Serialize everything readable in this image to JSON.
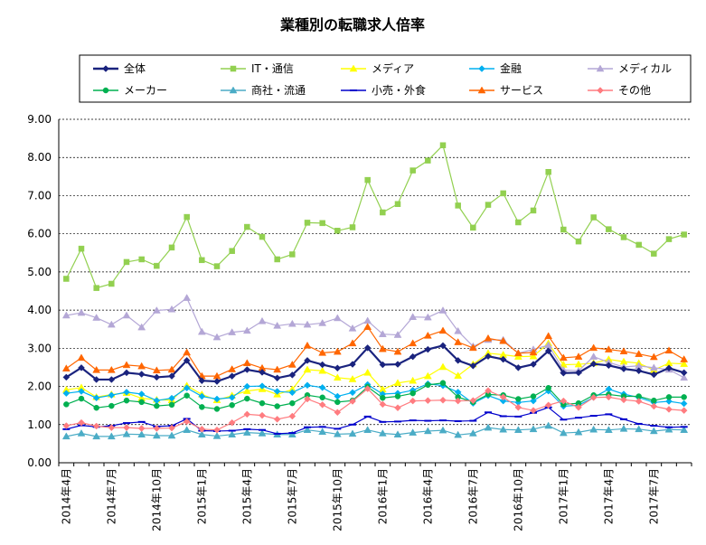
{
  "chart_data": {
    "type": "line",
    "title": "業種別の転職求人倍率",
    "ylim": [
      0,
      9
    ],
    "y_ticks": [
      "0.00",
      "1.00",
      "2.00",
      "3.00",
      "4.00",
      "5.00",
      "6.00",
      "7.00",
      "8.00",
      "9.00"
    ],
    "grid": "horizontal dashed",
    "legend_position": "top",
    "x": [
      "2014年4月",
      "2014年5月",
      "2014年6月",
      "2014年7月",
      "2014年8月",
      "2014年9月",
      "2014年10月",
      "2014年11月",
      "2014年12月",
      "2015年1月",
      "2015年2月",
      "2015年3月",
      "2015年4月",
      "2015年5月",
      "2015年6月",
      "2015年7月",
      "2015年8月",
      "2015年9月",
      "2015年10月",
      "2015年11月",
      "2015年12月",
      "2016年1月",
      "2016年2月",
      "2016年3月",
      "2016年4月",
      "2016年5月",
      "2016年6月",
      "2016年7月",
      "2016年8月",
      "2016年9月",
      "2016年10月",
      "2016年11月",
      "2016年12月",
      "2017年1月",
      "2017年2月",
      "2017年3月",
      "2017年4月",
      "2017年5月",
      "2017年6月",
      "2017年7月",
      "2017年8月",
      "2017年9月"
    ],
    "x_tick_labels": [
      {
        "index": 0,
        "label": "2014年4月"
      },
      {
        "index": 3,
        "label": "2014年7月"
      },
      {
        "index": 6,
        "label": "2014年10月"
      },
      {
        "index": 9,
        "label": "2015年1月"
      },
      {
        "index": 12,
        "label": "2015年4月"
      },
      {
        "index": 15,
        "label": "2015年7月"
      },
      {
        "index": 18,
        "label": "2015年10月"
      },
      {
        "index": 21,
        "label": "2016年1月"
      },
      {
        "index": 24,
        "label": "2016年4月"
      },
      {
        "index": 27,
        "label": "2016年7月"
      },
      {
        "index": 30,
        "label": "2016年10月"
      },
      {
        "index": 33,
        "label": "2017年1月"
      },
      {
        "index": 36,
        "label": "2017年4月"
      },
      {
        "index": 39,
        "label": "2017年7月"
      }
    ],
    "series": [
      {
        "name": "全体",
        "color": "#1a237e",
        "marker": "diamond",
        "width": 2.2,
        "values": [
          2.24,
          2.49,
          2.18,
          2.18,
          2.36,
          2.32,
          2.24,
          2.27,
          2.68,
          2.15,
          2.13,
          2.27,
          2.44,
          2.37,
          2.22,
          2.3,
          2.68,
          2.57,
          2.48,
          2.58,
          3.01,
          2.57,
          2.58,
          2.78,
          2.97,
          3.07,
          2.68,
          2.54,
          2.79,
          2.71,
          2.49,
          2.58,
          2.93,
          2.35,
          2.36,
          2.59,
          2.55,
          2.46,
          2.41,
          2.31,
          2.48,
          2.36
        ]
      },
      {
        "name": "IT・通信",
        "color": "#92d050",
        "marker": "square",
        "width": 1.2,
        "values": [
          4.82,
          5.61,
          4.58,
          4.69,
          5.26,
          5.33,
          5.16,
          5.64,
          6.44,
          5.31,
          5.15,
          5.55,
          6.18,
          5.92,
          5.33,
          5.46,
          6.29,
          6.28,
          6.08,
          6.17,
          7.41,
          6.56,
          6.78,
          7.66,
          7.92,
          8.32,
          6.74,
          6.16,
          6.76,
          7.06,
          6.3,
          6.61,
          7.62,
          6.11,
          5.8,
          6.43,
          6.12,
          5.91,
          5.71,
          5.48,
          5.86,
          5.98
        ]
      },
      {
        "name": "メディア",
        "color": "#ffff00",
        "marker": "triangle",
        "width": 1.2,
        "values": [
          1.91,
          1.97,
          1.72,
          1.79,
          1.83,
          1.69,
          1.65,
          1.64,
          2.02,
          1.79,
          1.64,
          1.76,
          1.88,
          1.93,
          1.79,
          1.92,
          2.44,
          2.41,
          2.23,
          2.19,
          2.36,
          1.92,
          2.09,
          2.15,
          2.27,
          2.51,
          2.28,
          2.58,
          2.87,
          2.83,
          2.78,
          2.79,
          3.13,
          2.57,
          2.58,
          2.61,
          2.71,
          2.65,
          2.61,
          2.43,
          2.61,
          2.59
        ]
      },
      {
        "name": "金融",
        "color": "#00b0f0",
        "marker": "diamond",
        "width": 1.2,
        "values": [
          1.82,
          1.87,
          1.7,
          1.77,
          1.85,
          1.8,
          1.63,
          1.69,
          1.96,
          1.74,
          1.67,
          1.71,
          2.0,
          2.01,
          1.87,
          1.84,
          2.03,
          1.97,
          1.74,
          1.84,
          2.05,
          1.8,
          1.82,
          1.9,
          2.07,
          2.02,
          1.85,
          1.56,
          1.76,
          1.62,
          1.58,
          1.62,
          1.88,
          1.48,
          1.51,
          1.71,
          1.93,
          1.8,
          1.71,
          1.58,
          1.61,
          1.55
        ]
      },
      {
        "name": "メディカル",
        "color": "#b4a7d6",
        "marker": "triangle",
        "width": 1.2,
        "values": [
          3.86,
          3.93,
          3.8,
          3.62,
          3.86,
          3.55,
          3.99,
          4.02,
          4.32,
          3.43,
          3.29,
          3.42,
          3.46,
          3.71,
          3.59,
          3.64,
          3.62,
          3.66,
          3.79,
          3.52,
          3.72,
          3.37,
          3.35,
          3.82,
          3.81,
          3.99,
          3.45,
          3.05,
          3.22,
          3.22,
          2.87,
          2.97,
          3.08,
          2.43,
          2.41,
          2.78,
          2.63,
          2.51,
          2.54,
          2.49,
          2.44,
          2.23
        ]
      },
      {
        "name": "メーカー",
        "color": "#00b050",
        "marker": "circle",
        "width": 1.2,
        "values": [
          1.53,
          1.68,
          1.44,
          1.49,
          1.63,
          1.59,
          1.49,
          1.52,
          1.76,
          1.46,
          1.41,
          1.51,
          1.68,
          1.56,
          1.48,
          1.56,
          1.77,
          1.71,
          1.59,
          1.63,
          1.99,
          1.7,
          1.74,
          1.82,
          2.04,
          2.09,
          1.72,
          1.59,
          1.79,
          1.77,
          1.67,
          1.74,
          1.96,
          1.53,
          1.56,
          1.77,
          1.79,
          1.74,
          1.74,
          1.63,
          1.72,
          1.72
        ]
      },
      {
        "name": "商社・流通",
        "color": "#4bacc6",
        "marker": "triangle",
        "width": 1.2,
        "values": [
          0.69,
          0.77,
          0.69,
          0.69,
          0.75,
          0.74,
          0.71,
          0.71,
          0.86,
          0.74,
          0.7,
          0.74,
          0.79,
          0.77,
          0.74,
          0.74,
          0.86,
          0.81,
          0.75,
          0.76,
          0.86,
          0.77,
          0.74,
          0.79,
          0.83,
          0.85,
          0.73,
          0.77,
          0.92,
          0.87,
          0.86,
          0.88,
          0.97,
          0.78,
          0.8,
          0.87,
          0.86,
          0.89,
          0.88,
          0.83,
          0.87,
          0.86
        ]
      },
      {
        "name": "小売・外食",
        "color": "#0000cc",
        "marker": "dash",
        "width": 1.2,
        "values": [
          0.88,
          0.98,
          0.94,
          0.97,
          1.04,
          1.07,
          0.95,
          0.97,
          1.15,
          0.84,
          0.83,
          0.84,
          0.88,
          0.86,
          0.76,
          0.78,
          0.93,
          0.94,
          0.89,
          1.0,
          1.21,
          1.07,
          1.08,
          1.11,
          1.1,
          1.11,
          1.09,
          1.1,
          1.32,
          1.22,
          1.21,
          1.31,
          1.45,
          1.13,
          1.18,
          1.23,
          1.27,
          1.14,
          1.02,
          0.97,
          0.93,
          0.94
        ]
      },
      {
        "name": "サービス",
        "color": "#ff6600",
        "marker": "triangle",
        "width": 1.2,
        "values": [
          2.47,
          2.75,
          2.43,
          2.43,
          2.56,
          2.53,
          2.42,
          2.44,
          2.89,
          2.27,
          2.27,
          2.45,
          2.61,
          2.48,
          2.44,
          2.57,
          3.07,
          2.88,
          2.91,
          3.13,
          3.56,
          2.98,
          2.91,
          3.13,
          3.33,
          3.46,
          3.16,
          3.01,
          3.26,
          3.19,
          2.87,
          2.89,
          3.32,
          2.75,
          2.78,
          3.01,
          2.97,
          2.92,
          2.85,
          2.77,
          2.94,
          2.71
        ]
      },
      {
        "name": "その他",
        "color": "#ff7c80",
        "marker": "diamond",
        "width": 1.2,
        "values": [
          0.97,
          1.05,
          0.96,
          0.92,
          0.92,
          0.9,
          0.9,
          0.91,
          1.08,
          0.88,
          0.86,
          1.05,
          1.27,
          1.24,
          1.14,
          1.22,
          1.67,
          1.52,
          1.32,
          1.61,
          1.94,
          1.53,
          1.44,
          1.62,
          1.63,
          1.64,
          1.62,
          1.63,
          1.89,
          1.72,
          1.45,
          1.37,
          1.51,
          1.62,
          1.45,
          1.71,
          1.72,
          1.65,
          1.61,
          1.48,
          1.4,
          1.37
        ]
      }
    ]
  }
}
